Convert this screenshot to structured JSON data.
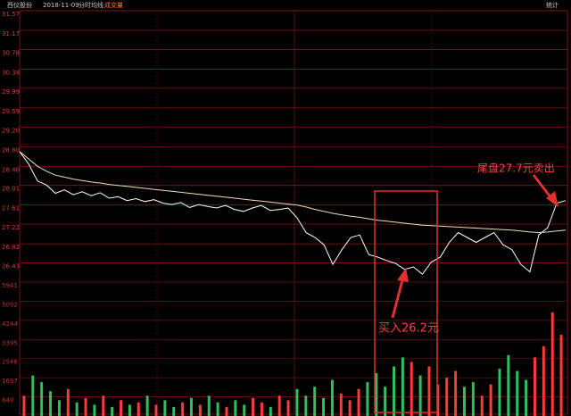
{
  "header": {
    "stock": "西仪股份",
    "date": "2018-11-09",
    "mode": "分时",
    "avg": "均线",
    "volume": "成交量",
    "stats": "统计"
  },
  "chart_data": [
    {
      "type": "line",
      "annotations": [
        "买入26.2元",
        "尾盘27.7元卖出"
      ],
      "ylim": [
        26.04,
        31.57
      ],
      "yticks": [
        31.57,
        31.17,
        30.78,
        30.38,
        29.99,
        29.59,
        {
          "value": 29.2,
          "label": "29.20"
        },
        {
          "value": 28.8,
          "label": "28.80"
        },
        {
          "value": 28.4,
          "label": "28.40"
        },
        28.01,
        27.61,
        27.22,
        26.82,
        26.43
      ],
      "series": [
        {
          "color": "#ffffff",
          "values": [
            28.7,
            28.45,
            28.1,
            28.02,
            27.85,
            27.92,
            27.82,
            27.88,
            27.8,
            27.86,
            27.75,
            27.78,
            27.7,
            27.74,
            27.68,
            27.72,
            27.65,
            27.62,
            27.66,
            27.56,
            27.62,
            27.58,
            27.55,
            27.6,
            27.52,
            27.48,
            27.55,
            27.6,
            27.5,
            27.52,
            27.55,
            27.35,
            27.05,
            26.95,
            26.8,
            26.4,
            26.7,
            26.95,
            27.0,
            26.6,
            26.55,
            26.48,
            26.42,
            26.3,
            26.35,
            26.2,
            26.45,
            26.55,
            26.85,
            27.05,
            26.95,
            26.85,
            26.95,
            27.05,
            26.8,
            26.7,
            26.4,
            26.25,
            27.0,
            27.15,
            27.65,
            27.7
          ]
        },
        {
          "color": "#e8e2b8",
          "values": [
            28.7,
            28.55,
            28.4,
            28.3,
            28.22,
            28.18,
            28.14,
            28.11,
            28.08,
            28.06,
            28.03,
            28.01,
            27.99,
            27.97,
            27.95,
            27.93,
            27.91,
            27.89,
            27.87,
            27.85,
            27.83,
            27.81,
            27.79,
            27.77,
            27.75,
            27.73,
            27.71,
            27.69,
            27.67,
            27.65,
            27.63,
            27.61,
            27.57,
            27.52,
            27.48,
            27.44,
            27.41,
            27.38,
            27.36,
            27.33,
            27.3,
            27.28,
            27.26,
            27.24,
            27.22,
            27.2,
            27.19,
            27.18,
            27.17,
            27.16,
            27.15,
            27.14,
            27.13,
            27.12,
            27.11,
            27.1,
            27.08,
            27.06,
            27.05,
            27.06,
            27.08,
            27.1
          ]
        }
      ]
    },
    {
      "type": "bar",
      "ylim": [
        0,
        5941
      ],
      "yticks": [
        5941,
        5092,
        4244,
        3395,
        2546,
        1697,
        849
      ],
      "up_color": "#ff3a3a",
      "down_color": "#2fc060",
      "values": [
        900,
        1800,
        1500,
        1100,
        700,
        1200,
        600,
        800,
        500,
        900,
        400,
        700,
        500,
        600,
        900,
        500,
        700,
        400,
        600,
        800,
        500,
        900,
        600,
        400,
        700,
        500,
        800,
        600,
        400,
        900,
        700,
        1200,
        900,
        1300,
        800,
        1600,
        1000,
        700,
        1200,
        1500,
        1900,
        1300,
        2200,
        2600,
        2400,
        1800,
        2200,
        1400,
        1700,
        2000,
        1300,
        1500,
        900,
        1400,
        2100,
        2700,
        2000,
        1600,
        2600,
        3100,
        4600,
        3600
      ]
    }
  ]
}
